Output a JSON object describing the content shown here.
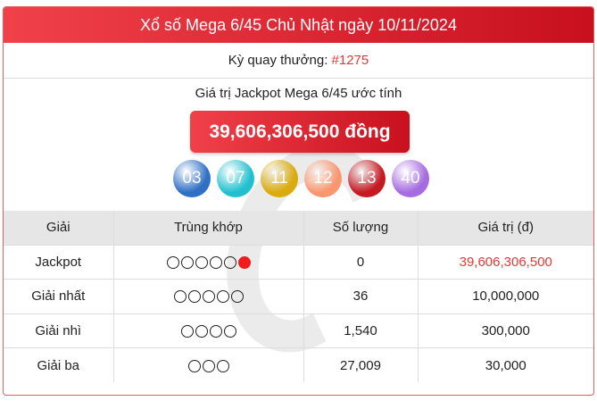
{
  "header": {
    "title": "Xổ số Mega 6/45 Chủ Nhật ngày 10/11/2024"
  },
  "draw": {
    "label": "Kỳ quay thưởng: ",
    "number": "#1275"
  },
  "jackpot": {
    "label": "Giá trị Jackpot Mega 6/45 ước tính",
    "amount": "39,606,306,500 đồng"
  },
  "balls": [
    {
      "n": "03",
      "color": "#2f6fc4"
    },
    {
      "n": "07",
      "color": "#22c0cf"
    },
    {
      "n": "11",
      "color": "#d9ab0e"
    },
    {
      "n": "12",
      "color": "#f89670"
    },
    {
      "n": "13",
      "color": "#c41a22"
    },
    {
      "n": "40",
      "color": "#a66be0"
    }
  ],
  "table": {
    "headers": [
      "Giải",
      "Trùng khớp",
      "Số lượng",
      "Giá trị (đ)"
    ],
    "rows": [
      {
        "prize": "Jackpot",
        "match": 5,
        "special": true,
        "count": "0",
        "value": "39,606,306,500",
        "highlight": true
      },
      {
        "prize": "Giải nhất",
        "match": 5,
        "special": false,
        "count": "36",
        "value": "10,000,000"
      },
      {
        "prize": "Giải nhì",
        "match": 4,
        "special": false,
        "count": "1,540",
        "value": "300,000"
      },
      {
        "prize": "Giải ba",
        "match": 3,
        "special": false,
        "count": "27,009",
        "value": "30,000"
      }
    ]
  }
}
